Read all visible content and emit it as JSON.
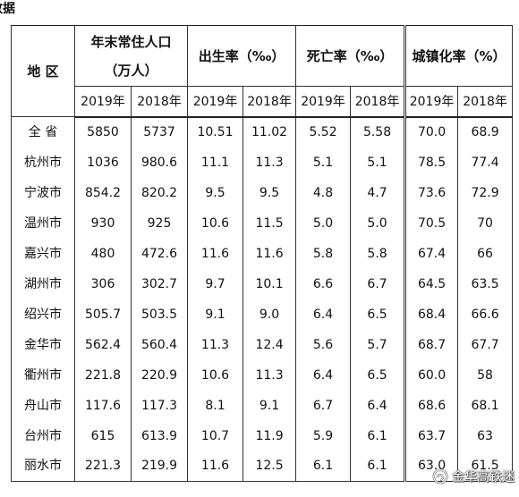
{
  "heading_fragment": "数据",
  "table": {
    "region_header": "地 区",
    "population": {
      "title": "年末常住人口",
      "unit": "（万人）"
    },
    "birth_rate": {
      "title": "出生率（‰）"
    },
    "death_rate": {
      "title": "死亡率（‰）"
    },
    "urbanization": {
      "title": "城镇化率（%）"
    },
    "years": [
      "2019年",
      "2018年"
    ],
    "rows": [
      {
        "region": "全 省",
        "values": [
          "5850",
          "5737",
          "10.51",
          "11.02",
          "5.52",
          "5.58",
          "70.0",
          "68.9"
        ]
      },
      {
        "region": "杭州市",
        "values": [
          "1036",
          "980.6",
          "11.1",
          "11.3",
          "5.1",
          "5.1",
          "78.5",
          "77.4"
        ]
      },
      {
        "region": "宁波市",
        "values": [
          "854.2",
          "820.2",
          "9.5",
          "9.5",
          "4.8",
          "4.7",
          "73.6",
          "72.9"
        ]
      },
      {
        "region": "温州市",
        "values": [
          "930",
          "925",
          "10.6",
          "11.5",
          "5.0",
          "5.0",
          "70.5",
          "70"
        ]
      },
      {
        "region": "嘉兴市",
        "values": [
          "480",
          "472.6",
          "11.6",
          "11.6",
          "5.8",
          "5.8",
          "67.4",
          "66"
        ]
      },
      {
        "region": "湖州市",
        "values": [
          "306",
          "302.7",
          "9.7",
          "10.1",
          "6.6",
          "6.7",
          "64.5",
          "63.5"
        ]
      },
      {
        "region": "绍兴市",
        "values": [
          "505.7",
          "503.5",
          "9.1",
          "9.0",
          "6.4",
          "6.5",
          "68.4",
          "66.6"
        ]
      },
      {
        "region": "金华市",
        "values": [
          "562.4",
          "560.4",
          "11.3",
          "12.4",
          "5.6",
          "5.7",
          "68.7",
          "67.7"
        ]
      },
      {
        "region": "衢州市",
        "values": [
          "221.8",
          "220.9",
          "10.6",
          "11.3",
          "6.4",
          "6.5",
          "60.0",
          "58"
        ]
      },
      {
        "region": "舟山市",
        "values": [
          "117.6",
          "117.3",
          "8.1",
          "9.1",
          "6.7",
          "6.4",
          "68.6",
          "68.1"
        ]
      },
      {
        "region": "台州市",
        "values": [
          "615",
          "613.9",
          "10.7",
          "11.9",
          "5.9",
          "6.1",
          "63.7",
          "63"
        ]
      },
      {
        "region": "丽水市",
        "values": [
          "221.3",
          "219.9",
          "11.6",
          "12.5",
          "6.1",
          "6.1",
          "63.0",
          "61.5"
        ]
      }
    ]
  },
  "watermark": {
    "icon": "wechat-official-account-icon",
    "text": "金华高铁迷"
  }
}
